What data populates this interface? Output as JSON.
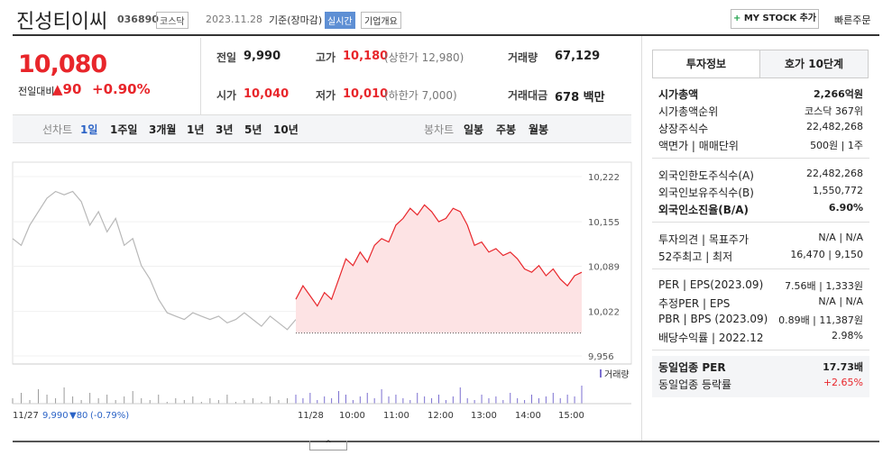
{
  "header": {
    "name": "진성티이씨",
    "code": "036890",
    "market": "코스닥",
    "date": "2023.11.28",
    "basis": "기준(장마감)",
    "realtime": "실시간",
    "company_info": "기업개요",
    "my_stock": "MY STOCK 추가",
    "quick_order": "빠른주문"
  },
  "quote": {
    "price": "10,080",
    "change_label": "전일대비",
    "change": "▲90",
    "rate": "+0.90%",
    "items": [
      {
        "label": "전일",
        "value": "9,990"
      },
      {
        "label": "고가",
        "value": "10,180",
        "extra": "(상한가 12,980)"
      },
      {
        "label": "거래량",
        "value": "67,129"
      },
      {
        "label": "시가",
        "value": "10,040"
      },
      {
        "label": "저가",
        "value": "10,010",
        "extra": "(하한가 7,000)"
      },
      {
        "label": "거래대금",
        "value": "678 백만"
      }
    ]
  },
  "chart_tabs": {
    "line_label": "선차트",
    "periods": [
      "1일",
      "1주일",
      "3개월",
      "1년",
      "3년",
      "5년",
      "10년"
    ],
    "candle_label": "봉차트",
    "candles": [
      "일봉",
      "주봉",
      "월봉"
    ]
  },
  "chart_data": {
    "type": "line",
    "ylim": [
      9956,
      10222
    ],
    "yticks": [
      {
        "value": 10222,
        "label": "10,222"
      },
      {
        "value": 10155,
        "label": "10,155"
      },
      {
        "value": 10089,
        "label": "10,089"
      },
      {
        "value": 10022,
        "label": "10,022"
      },
      {
        "value": 9956,
        "label": "9,956"
      }
    ],
    "base_line": 9990,
    "xticks": [
      "11/27",
      "11/28",
      "10:00",
      "11:00",
      "12:00",
      "13:00",
      "14:00",
      "15:00"
    ],
    "series": [
      {
        "color": "#b8b8b8",
        "values": [
          10130,
          10120,
          10150,
          10170,
          10190,
          10200,
          10195,
          10200,
          10185,
          10150,
          10170,
          10140,
          10160,
          10120,
          10130,
          10090,
          10070,
          10040,
          10020,
          10015,
          10010,
          10020,
          10015,
          10010,
          10015,
          10005,
          10010,
          10020,
          10010,
          10000,
          10015,
          10005,
          9995,
          10010
        ]
      },
      {
        "color": "#e8262b",
        "values": [
          10040,
          10060,
          10045,
          10030,
          10050,
          10040,
          10070,
          10100,
          10090,
          10110,
          10095,
          10120,
          10130,
          10125,
          10150,
          10160,
          10175,
          10165,
          10180,
          10170,
          10155,
          10160,
          10175,
          10170,
          10150,
          10120,
          10125,
          10110,
          10115,
          10105,
          10110,
          10100,
          10085,
          10080,
          10090,
          10075,
          10085,
          10070,
          10060,
          10075,
          10080
        ]
      }
    ],
    "volume_label": "거래량",
    "volumes": [
      {
        "color": "#9a9a9a",
        "values": [
          3,
          6,
          2,
          8,
          5,
          3,
          9,
          4,
          2,
          6,
          3,
          5,
          2,
          4,
          7,
          3,
          2,
          5,
          1,
          3,
          2,
          4,
          1,
          3,
          2,
          5,
          1,
          2,
          3,
          1,
          4,
          2,
          3,
          2
        ]
      },
      {
        "color": "#7b6fd0",
        "values": [
          5,
          3,
          6,
          2,
          4,
          3,
          7,
          5,
          2,
          4,
          6,
          3,
          8,
          4,
          5,
          3,
          2,
          6,
          4,
          3,
          5,
          2,
          4,
          9,
          3,
          2,
          5,
          3,
          4,
          2,
          6,
          3,
          2,
          5,
          3,
          4,
          6,
          3,
          5,
          4,
          10
        ]
      }
    ],
    "prev_close": "9,990",
    "prev_change": "▼80",
    "prev_rate": "(-0.79%)"
  },
  "side": {
    "tabs": [
      "투자정보",
      "호가 10단계"
    ],
    "groups": [
      [
        [
          "시가총액",
          "2,266억원"
        ],
        [
          "시가총액순위",
          "코스닥 367위"
        ],
        [
          "상장주식수",
          "22,482,268"
        ],
        [
          "액면가 | 매매단위",
          "500원 | 1주"
        ]
      ],
      [
        [
          "외국인한도주식수(A)",
          "22,482,268"
        ],
        [
          "외국인보유주식수(B)",
          "1,550,772"
        ],
        [
          "외국인소진율(B/A)",
          "6.90%"
        ]
      ],
      [
        [
          "투자의견 | 목표주가",
          "N/A | N/A"
        ],
        [
          "52주최고 | 최저",
          "16,470 | 9,150"
        ]
      ],
      [
        [
          "PER | EPS(2023.09)",
          "7.56배 | 1,333원"
        ],
        [
          "추정PER | EPS",
          "N/A | N/A"
        ],
        [
          "PBR | BPS (2023.09)",
          "0.89배 | 11,387원"
        ],
        [
          "배당수익률 | 2022.12",
          "2.98%"
        ]
      ],
      [
        [
          "동일업종 PER",
          "17.73배"
        ],
        [
          "동일업종 등락률",
          "+2.65%"
        ]
      ]
    ]
  }
}
